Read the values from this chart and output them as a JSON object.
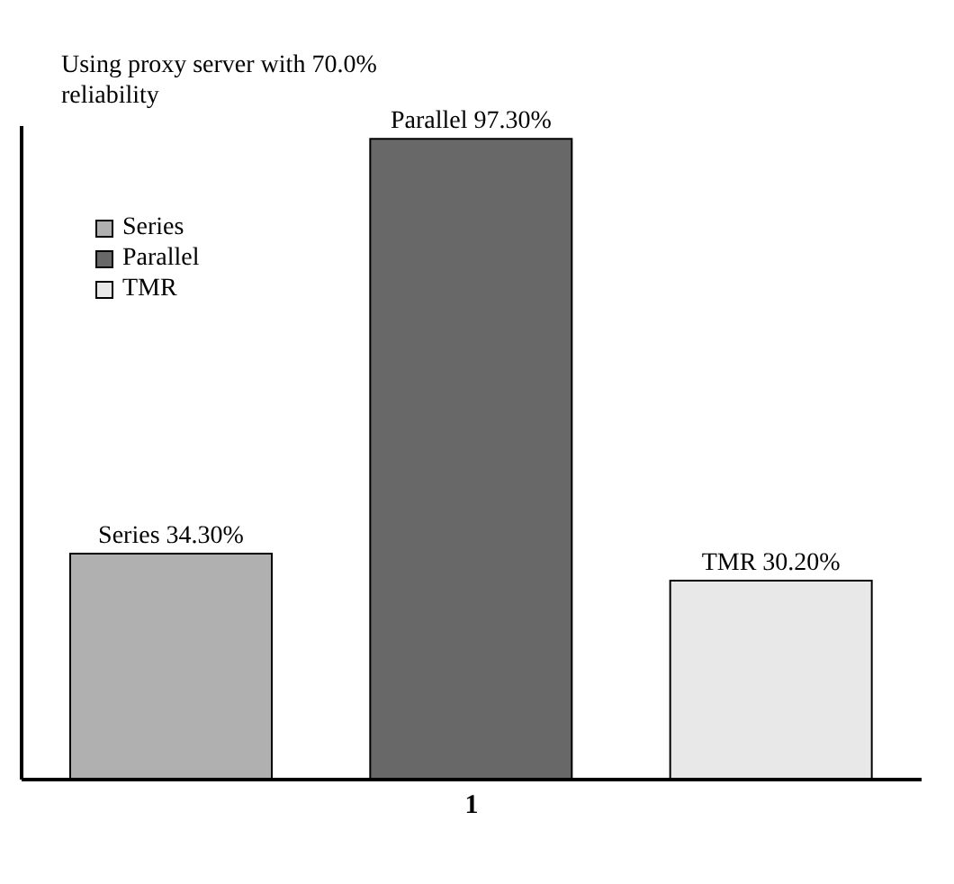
{
  "chart_data": {
    "type": "bar",
    "title": "Using proxy server with 70.0% reliability",
    "categories": [
      null,
      "1",
      null
    ],
    "stacked": true,
    "series": [
      {
        "name": "Series",
        "color": "#b0b0b0",
        "values": [
          34.3,
          null,
          null
        ],
        "value_labels": [
          "Series 34.30%",
          null,
          null
        ]
      },
      {
        "name": "Parallel",
        "color": "#686868",
        "values": [
          null,
          97.3,
          null
        ],
        "value_labels": [
          null,
          "Parallel 97.30%",
          null
        ]
      },
      {
        "name": "TMR",
        "color": "#e8e8e8",
        "values": [
          null,
          null,
          30.2
        ],
        "value_labels": [
          null,
          null,
          "TMR 30.20%"
        ]
      }
    ],
    "legend": "top left",
    "tick_labels": "x",
    "grid": false
  }
}
